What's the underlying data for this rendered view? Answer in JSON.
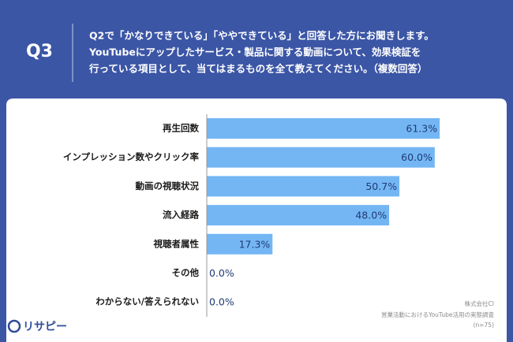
{
  "header": {
    "label": "Q3",
    "question": [
      "Q2で「かなりできている」「ややできている」と回答した方にお聞きします。",
      "YouTubeにアップしたサービス・製品に関する動画について、効果検証を",
      "行っている項目として、当てはまるものを全て教えてください。（複数回答）"
    ]
  },
  "chart_data": {
    "type": "bar",
    "orientation": "horizontal",
    "categories": [
      "再生回数",
      "インプレッション数やクリック率",
      "動画の視聴状況",
      "流入経路",
      "視聴者属性",
      "その他",
      "わからない/答えられない"
    ],
    "values": [
      61.3,
      60.0,
      50.7,
      48.0,
      17.3,
      0.0,
      0.0
    ],
    "value_labels": [
      "61.3%",
      "60.0%",
      "50.7%",
      "48.0%",
      "17.3%",
      "0.0%",
      "0.0%"
    ],
    "color": "#74b6f4",
    "xlim": [
      0,
      70
    ]
  },
  "source": [
    "株式会社CI",
    "営業活動におけるYouTube活用の実態調査",
    "(n=75)"
  ],
  "logo": "リサピー"
}
